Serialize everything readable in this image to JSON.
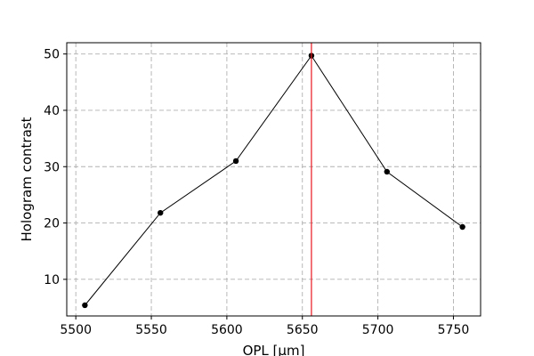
{
  "chart_data": {
    "type": "line",
    "title": "",
    "xlabel": "OPL [μm]",
    "ylabel": "Hologram contrast",
    "xlim": [
      5494,
      5768
    ],
    "ylim": [
      3.5,
      52
    ],
    "xticks": [
      5500,
      5550,
      5600,
      5650,
      5700,
      5750
    ],
    "yticks": [
      10,
      20,
      30,
      40,
      50
    ],
    "grid": true,
    "grid_style": "dashed",
    "vline": {
      "x": 5656,
      "color": "#e8141c"
    },
    "series": [
      {
        "color": "#000000",
        "marker": "circle",
        "x": [
          5506,
          5556,
          5606,
          5656,
          5706,
          5756
        ],
        "y": [
          5.4,
          21.8,
          31.0,
          49.7,
          29.1,
          19.3
        ]
      }
    ]
  }
}
